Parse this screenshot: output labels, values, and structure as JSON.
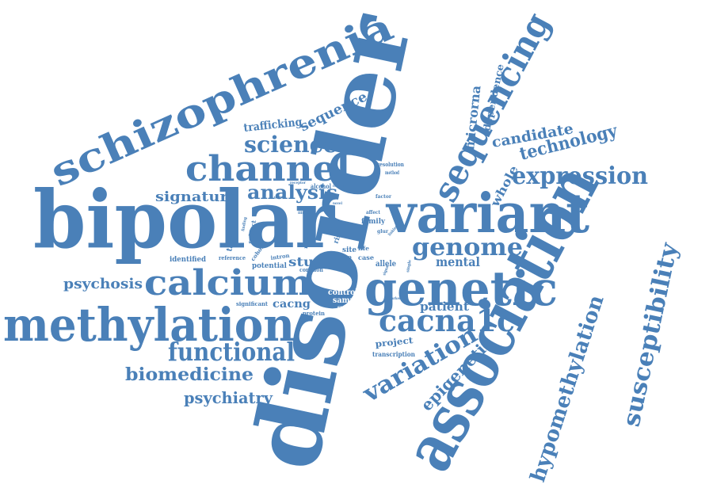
{
  "word_color": "#4a80b8",
  "background_color": "#ffffff",
  "words": {
    "disorder": "disorder",
    "bipolar": "bipolar",
    "association": "association",
    "schizophrenia": "schizophrenia",
    "methylation": "methylation",
    "variant": "variant",
    "genetic": "genetic",
    "calcium": "calcium",
    "channel": "channel",
    "sequencing": "sequencing",
    "susceptibility": "susceptibility",
    "cacna1c": "cacna1c",
    "hypomethylation": "hypomethylation",
    "expression": "expression",
    "functional": "functional",
    "genome": "genome",
    "science": "science",
    "variation": "variation",
    "biomedicine": "biomedicine",
    "epigenetic": "epigenetic",
    "analysis": "analysis",
    "technology": "technology",
    "candidate": "candidate",
    "whole": "whole",
    "microrna": "microrna",
    "dependence": "dependence",
    "psychiatry": "psychiatry",
    "psychosis": "psychosis",
    "signature": "signature",
    "sequence": "sequence",
    "trafficking": "trafficking",
    "mental": "mental",
    "patient": "patient",
    "study": "study",
    "cacng": "cacng",
    "project": "project",
    "transcription": "transcription",
    "identified": "identified",
    "reference": "reference",
    "potential": "potential",
    "significant": "significant",
    "control": "control",
    "sample": "sample",
    "kozak": "kozak",
    "surface": "surface",
    "protein": "protein",
    "common": "common",
    "intron": "intron",
    "cohort": "cohort",
    "target": "target",
    "subject": "subject",
    "finding": "finding",
    "illness": "illness",
    "related": "related",
    "data": "data",
    "risk": "risk",
    "life": "life",
    "site": "site",
    "type": "type",
    "case": "case",
    "allele": "allele",
    "family": "family",
    "affect": "affect",
    "factor": "factor",
    "binding": "binding",
    "receptor": "receptor",
    "alcohol": "alcohol",
    "region": "region",
    "resolution": "resolution",
    "method": "method",
    "glur": "glur",
    "marker": "marker",
    "signal": "signal",
    "single": "single",
    "linking": "linking",
    "novel": "novel",
    "gene": "gene"
  }
}
